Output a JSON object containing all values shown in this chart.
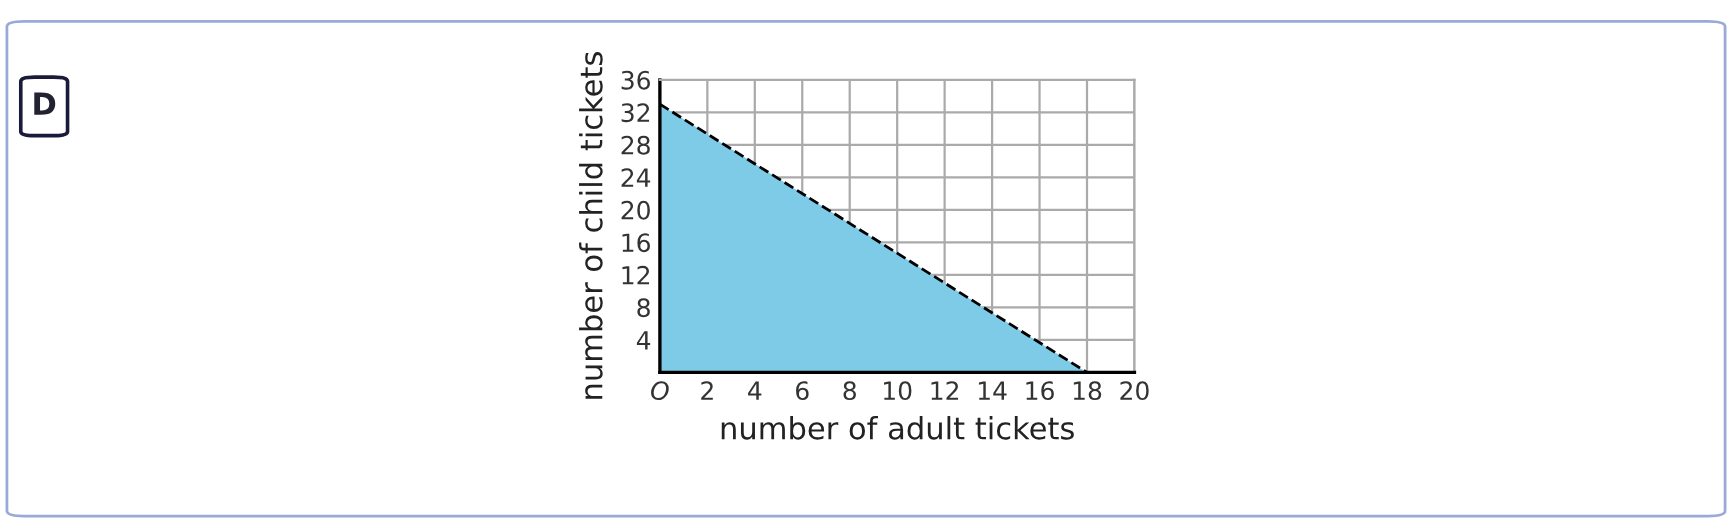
{
  "chart_data": {
    "type": "area",
    "x": [
      0,
      18
    ],
    "series": [
      {
        "color": "#7ecbe8",
        "values": [
          33,
          0
        ],
        "line_style": "dashed"
      }
    ],
    "xlabel": "number of adult tickets",
    "ylabel": "number of child tickets",
    "xlim": [
      0,
      20
    ],
    "ylim": [
      0,
      36
    ],
    "xticks": [
      {
        "value": 0,
        "label": "O"
      },
      2,
      4,
      6,
      8,
      10,
      12,
      14,
      16,
      18,
      20
    ],
    "yticks": [
      4,
      8,
      12,
      16,
      20,
      24,
      28,
      32,
      36
    ],
    "grid": true,
    "annotations": [
      "D"
    ]
  }
}
